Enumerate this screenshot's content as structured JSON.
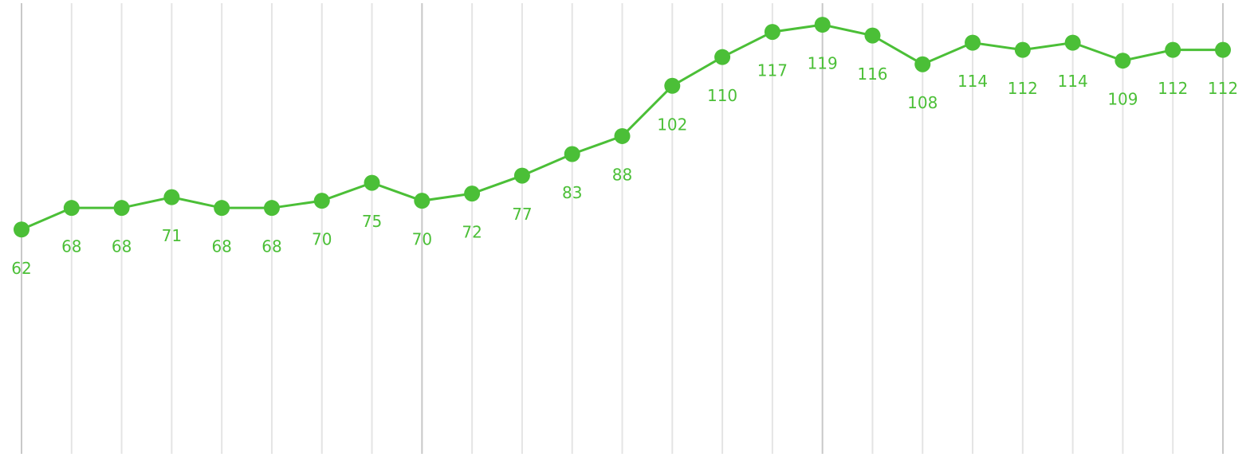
{
  "chart_data": {
    "type": "line",
    "series": [
      {
        "color": "#4bbf37",
        "values": [
          62,
          68,
          68,
          71,
          68,
          68,
          70,
          75,
          70,
          72,
          77,
          83,
          88,
          102,
          110,
          117,
          119,
          116,
          108,
          114,
          112,
          114,
          109,
          112,
          112
        ]
      }
    ],
    "ylim": [
      0,
      125
    ],
    "grid": true
  }
}
